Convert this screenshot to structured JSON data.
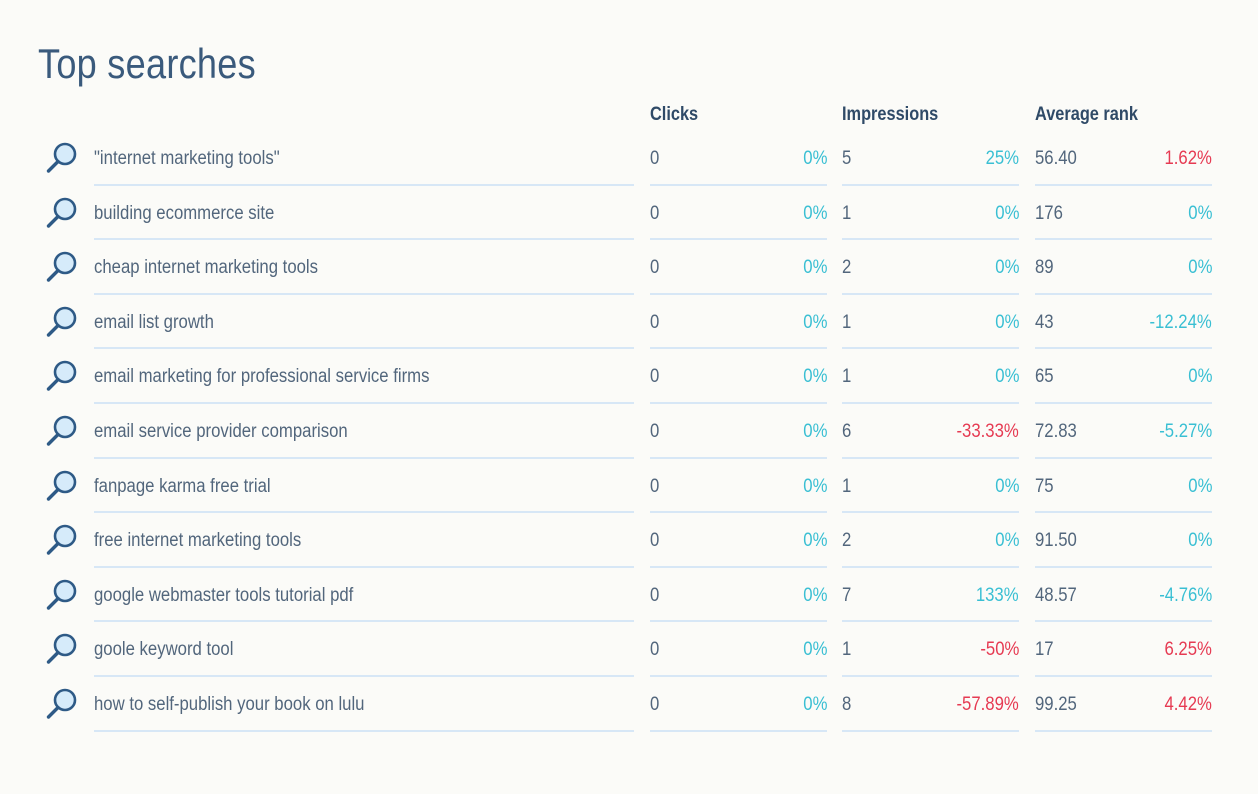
{
  "page": {
    "title": "Top searches"
  },
  "columns": {
    "clicks": "Clicks",
    "impressions": "Impressions",
    "average_rank": "Average rank"
  },
  "colors": {
    "accent_positive": "#39bfd3",
    "accent_negative": "#e63a52",
    "title": "#3a5a7c",
    "divider": "#d7e7f6"
  },
  "icons": {
    "row_icon": "search-icon"
  },
  "rows": [
    {
      "query": "\"internet marketing tools\"",
      "clicks": "0",
      "clicks_change": "0%",
      "impressions": "5",
      "impressions_change": "25%",
      "rank": "56.40",
      "rank_change": "1.62%",
      "impressions_trend": "pos",
      "rank_trend": "neg"
    },
    {
      "query": "building ecommerce site",
      "clicks": "0",
      "clicks_change": "0%",
      "impressions": "1",
      "impressions_change": "0%",
      "rank": "176",
      "rank_change": "0%",
      "impressions_trend": "pos",
      "rank_trend": "pos"
    },
    {
      "query": "cheap internet marketing tools",
      "clicks": "0",
      "clicks_change": "0%",
      "impressions": "2",
      "impressions_change": "0%",
      "rank": "89",
      "rank_change": "0%",
      "impressions_trend": "pos",
      "rank_trend": "pos"
    },
    {
      "query": "email list growth",
      "clicks": "0",
      "clicks_change": "0%",
      "impressions": "1",
      "impressions_change": "0%",
      "rank": "43",
      "rank_change": "-12.24%",
      "impressions_trend": "pos",
      "rank_trend": "pos"
    },
    {
      "query": "email marketing for professional service firms",
      "clicks": "0",
      "clicks_change": "0%",
      "impressions": "1",
      "impressions_change": "0%",
      "rank": "65",
      "rank_change": "0%",
      "impressions_trend": "pos",
      "rank_trend": "pos"
    },
    {
      "query": "email service provider comparison",
      "clicks": "0",
      "clicks_change": "0%",
      "impressions": "6",
      "impressions_change": "-33.33%",
      "rank": "72.83",
      "rank_change": "-5.27%",
      "impressions_trend": "neg",
      "rank_trend": "pos"
    },
    {
      "query": "fanpage karma free trial",
      "clicks": "0",
      "clicks_change": "0%",
      "impressions": "1",
      "impressions_change": "0%",
      "rank": "75",
      "rank_change": "0%",
      "impressions_trend": "pos",
      "rank_trend": "pos"
    },
    {
      "query": "free internet marketing tools",
      "clicks": "0",
      "clicks_change": "0%",
      "impressions": "2",
      "impressions_change": "0%",
      "rank": "91.50",
      "rank_change": "0%",
      "impressions_trend": "pos",
      "rank_trend": "pos"
    },
    {
      "query": "google webmaster tools tutorial pdf",
      "clicks": "0",
      "clicks_change": "0%",
      "impressions": "7",
      "impressions_change": "133%",
      "rank": "48.57",
      "rank_change": "-4.76%",
      "impressions_trend": "pos",
      "rank_trend": "pos"
    },
    {
      "query": "goole keyword tool",
      "clicks": "0",
      "clicks_change": "0%",
      "impressions": "1",
      "impressions_change": "-50%",
      "rank": "17",
      "rank_change": "6.25%",
      "impressions_trend": "neg",
      "rank_trend": "neg"
    },
    {
      "query": "how to self-publish your book on lulu",
      "clicks": "0",
      "clicks_change": "0%",
      "impressions": "8",
      "impressions_change": "-57.89%",
      "rank": "99.25",
      "rank_change": "4.42%",
      "impressions_trend": "neg",
      "rank_trend": "neg"
    }
  ]
}
